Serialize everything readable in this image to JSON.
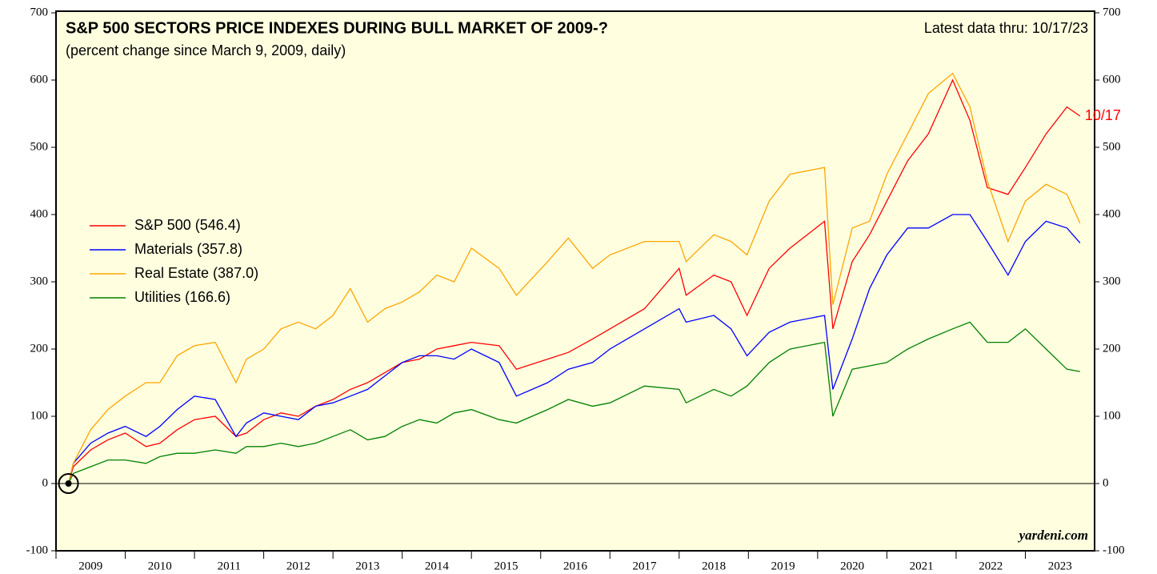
{
  "chart_data": {
    "type": "line",
    "title": "S&P 500 SECTORS PRICE INDEXES DURING BULL MARKET OF 2009-?",
    "subtitle": "(percent change since March 9, 2009, daily)",
    "annotation": "Latest data thru: 10/17/23",
    "end_label": "10/17",
    "watermark": "yardeni.com",
    "legend": "left",
    "grid": false,
    "xlim": [
      2009,
      2024
    ],
    "ylim": [
      -100,
      700
    ],
    "yticks": [
      -100,
      0,
      100,
      200,
      300,
      400,
      500,
      600,
      700
    ],
    "xticks": [
      {
        "value": 2009.5,
        "label": "2009"
      },
      {
        "value": 2010.5,
        "label": "2010"
      },
      {
        "value": 2011.5,
        "label": "2011"
      },
      {
        "value": 2012.5,
        "label": "2012"
      },
      {
        "value": 2013.5,
        "label": "2013"
      },
      {
        "value": 2014.5,
        "label": "2014"
      },
      {
        "value": 2015.5,
        "label": "2015"
      },
      {
        "value": 2016.5,
        "label": "2016"
      },
      {
        "value": 2017.5,
        "label": "2017"
      },
      {
        "value": 2018.5,
        "label": "2018"
      },
      {
        "value": 2019.5,
        "label": "2019"
      },
      {
        "value": 2020.5,
        "label": "2020"
      },
      {
        "value": 2021.5,
        "label": "2021"
      },
      {
        "value": 2022.5,
        "label": "2022"
      },
      {
        "value": 2023.5,
        "label": "2023"
      }
    ],
    "x": [
      2009.18,
      2009.25,
      2009.5,
      2009.75,
      2010.0,
      2010.3,
      2010.5,
      2010.75,
      2011.0,
      2011.3,
      2011.6,
      2011.75,
      2012.0,
      2012.25,
      2012.5,
      2012.75,
      2013.0,
      2013.25,
      2013.5,
      2013.75,
      2014.0,
      2014.25,
      2014.5,
      2014.75,
      2015.0,
      2015.4,
      2015.65,
      2016.1,
      2016.4,
      2016.75,
      2017.0,
      2017.5,
      2018.0,
      2018.1,
      2018.5,
      2018.75,
      2018.98,
      2019.3,
      2019.6,
      2020.1,
      2020.22,
      2020.5,
      2020.75,
      2021.0,
      2021.3,
      2021.6,
      2021.95,
      2022.2,
      2022.45,
      2022.75,
      2023.0,
      2023.3,
      2023.6,
      2023.79
    ],
    "series": [
      {
        "name": "S&P 500 (546.4)",
        "color": "#ff0000",
        "values": [
          0,
          25,
          50,
          65,
          75,
          55,
          60,
          80,
          95,
          100,
          70,
          75,
          95,
          105,
          100,
          115,
          125,
          140,
          150,
          165,
          180,
          185,
          200,
          205,
          210,
          205,
          170,
          185,
          195,
          215,
          230,
          260,
          320,
          280,
          310,
          300,
          250,
          320,
          350,
          390,
          230,
          330,
          370,
          420,
          480,
          520,
          600,
          540,
          440,
          430,
          470,
          520,
          560,
          546.4
        ]
      },
      {
        "name": "Materials (357.8)",
        "color": "#0000ff",
        "values": [
          0,
          30,
          60,
          75,
          85,
          70,
          85,
          110,
          130,
          125,
          70,
          90,
          105,
          100,
          95,
          115,
          120,
          130,
          140,
          160,
          180,
          190,
          190,
          185,
          200,
          180,
          130,
          150,
          170,
          180,
          200,
          230,
          260,
          240,
          250,
          230,
          190,
          225,
          240,
          250,
          140,
          215,
          290,
          340,
          380,
          380,
          400,
          400,
          360,
          310,
          360,
          390,
          380,
          357.8
        ]
      },
      {
        "name": "Real Estate (387.0)",
        "color": "#ffa500",
        "values": [
          0,
          30,
          80,
          110,
          130,
          150,
          150,
          190,
          205,
          210,
          150,
          185,
          200,
          230,
          240,
          230,
          250,
          290,
          240,
          260,
          270,
          285,
          310,
          300,
          350,
          320,
          280,
          330,
          365,
          320,
          340,
          360,
          360,
          330,
          370,
          360,
          340,
          420,
          460,
          470,
          266,
          380,
          390,
          460,
          520,
          580,
          610,
          560,
          450,
          360,
          420,
          445,
          430,
          387.0
        ]
      },
      {
        "name": "Utilities (166.6)",
        "color": "#008000",
        "values": [
          0,
          15,
          25,
          35,
          35,
          30,
          40,
          45,
          45,
          50,
          45,
          55,
          55,
          60,
          55,
          60,
          70,
          80,
          65,
          70,
          85,
          95,
          90,
          105,
          110,
          95,
          90,
          110,
          125,
          115,
          120,
          145,
          140,
          120,
          140,
          130,
          145,
          180,
          200,
          210,
          100,
          170,
          175,
          180,
          200,
          215,
          230,
          240,
          210,
          210,
          230,
          200,
          170,
          166.6
        ]
      }
    ]
  }
}
